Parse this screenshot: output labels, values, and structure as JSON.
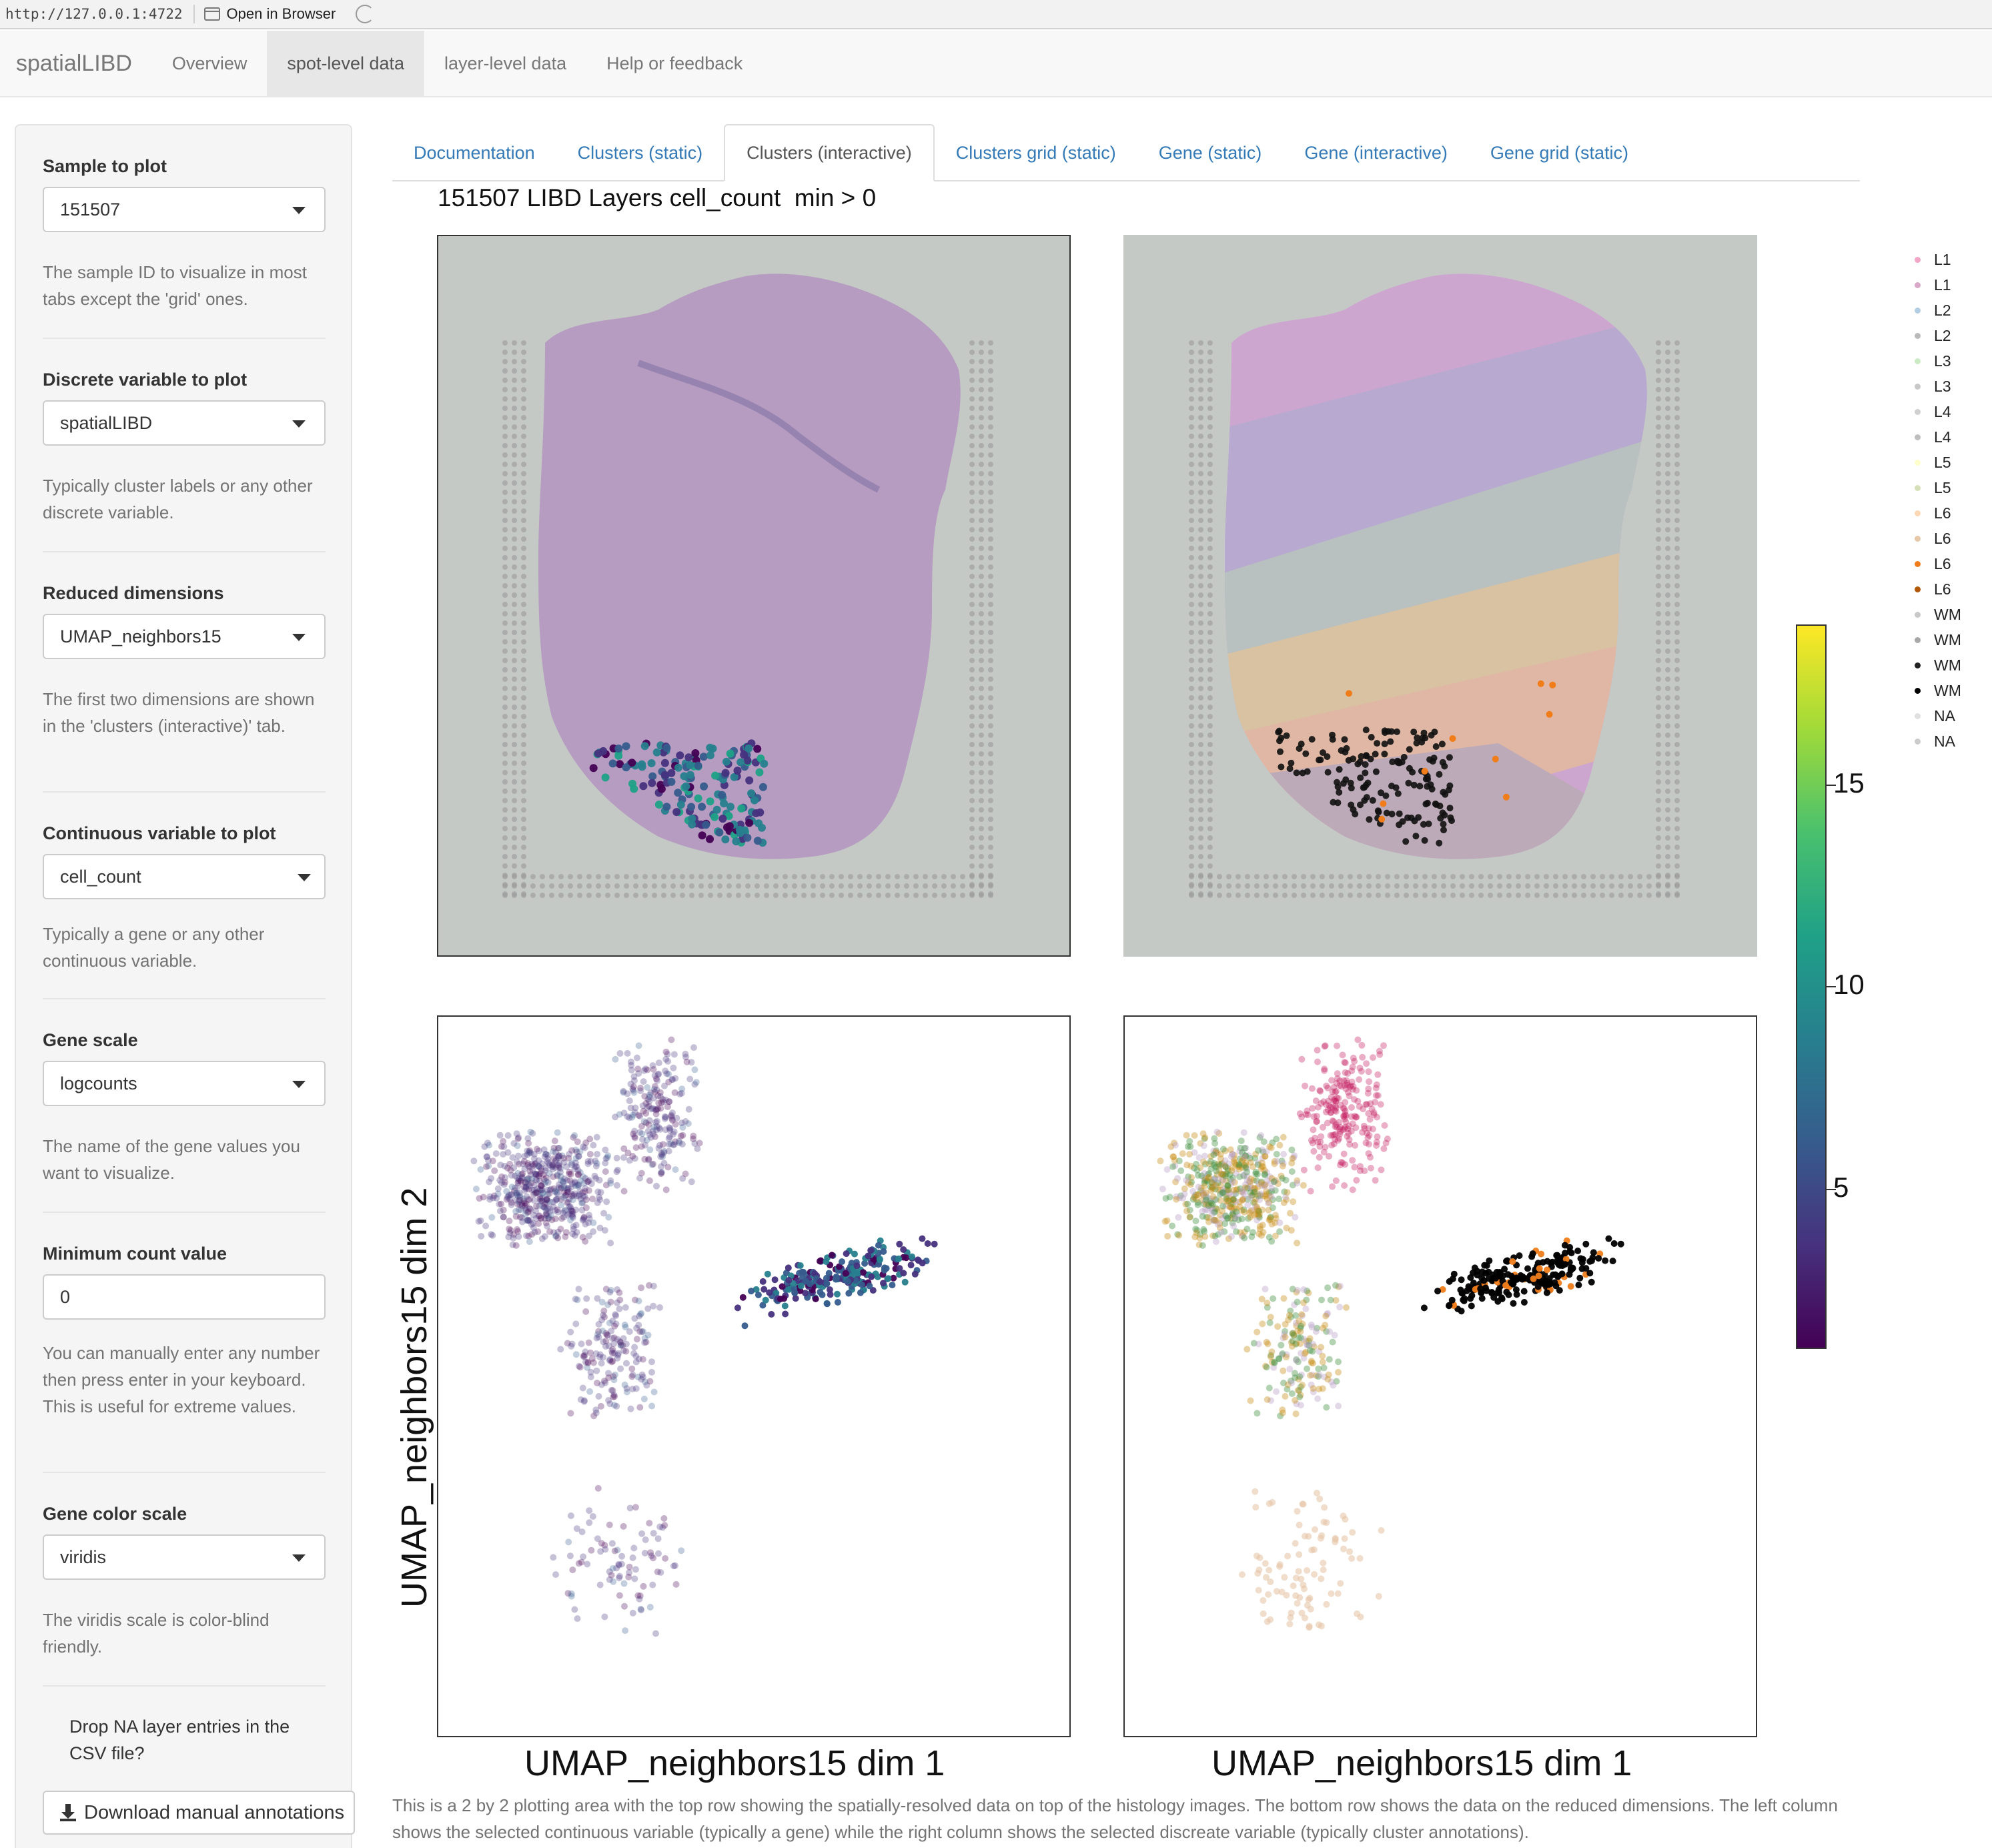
{
  "browser": {
    "url": "http://127.0.0.1:4722",
    "open_in_browser": "Open in Browser"
  },
  "navbar": {
    "brand": "spatialLIBD",
    "items": [
      "Overview",
      "spot-level data",
      "layer-level data",
      "Help or feedback"
    ],
    "active": "spot-level data"
  },
  "sidebar": {
    "sample": {
      "label": "Sample to plot",
      "value": "151507",
      "help": "The sample ID to visualize in most tabs except the 'grid' ones."
    },
    "discrete": {
      "label": "Discrete variable to plot",
      "value": "spatialLIBD",
      "help": "Typically cluster labels or any other discrete variable."
    },
    "reduced": {
      "label": "Reduced dimensions",
      "value": "UMAP_neighbors15",
      "help": "The first two dimensions are shown in the 'clusters (interactive)' tab."
    },
    "continuous": {
      "label": "Continuous variable to plot",
      "value": "cell_count",
      "help": "Typically a gene or any other continuous variable."
    },
    "gene_scale": {
      "label": "Gene scale",
      "value": "logcounts",
      "help": "The name of the gene values you want to visualize."
    },
    "min_count": {
      "label": "Minimum count value",
      "value": "0",
      "help": "You can manually enter any number then press enter in your keyboard. This is useful for extreme values."
    },
    "color_scale": {
      "label": "Gene color scale",
      "value": "viridis",
      "help": "The viridis scale is color-blind friendly."
    },
    "drop_na": {
      "label": "Drop NA layer entries in the CSV file?"
    },
    "download": {
      "label": "Download manual annotations"
    }
  },
  "tabs": [
    "Documentation",
    "Clusters (static)",
    "Clusters (interactive)",
    "Clusters grid (static)",
    "Gene (static)",
    "Gene (interactive)",
    "Gene grid (static)"
  ],
  "active_tab": "Clusters (interactive)",
  "plot_title": "151507 LIBD Layers cell_count  min > 0",
  "axes": {
    "x_label": "UMAP_neighbors15 dim 1",
    "y_label": "UMAP_neighbors15 dim 2"
  },
  "legend": {
    "entries": [
      {
        "label": "L1",
        "color": "#f4a6c6"
      },
      {
        "label": "L1",
        "color": "#d9a7c7"
      },
      {
        "label": "L2",
        "color": "#b3cde3"
      },
      {
        "label": "L2",
        "color": "#b9b9b9"
      },
      {
        "label": "L3",
        "color": "#ccebc5"
      },
      {
        "label": "L3",
        "color": "#c8c8c8"
      },
      {
        "label": "L4",
        "color": "#d0d0d0"
      },
      {
        "label": "L4",
        "color": "#bfbfbf"
      },
      {
        "label": "L5",
        "color": "#ffffcc"
      },
      {
        "label": "L5",
        "color": "#d6e0b8"
      },
      {
        "label": "L6",
        "color": "#fdd8b5"
      },
      {
        "label": "L6",
        "color": "#e6c7a8"
      },
      {
        "label": "L6",
        "color": "#f07d1a"
      },
      {
        "label": "L6",
        "color": "#b35806"
      },
      {
        "label": "WM",
        "color": "#c8c8c8"
      },
      {
        "label": "WM",
        "color": "#a8a8a8"
      },
      {
        "label": "WM",
        "color": "#222222"
      },
      {
        "label": "WM",
        "color": "#000000"
      },
      {
        "label": "NA",
        "color": "#e0e0e0"
      },
      {
        "label": "NA",
        "color": "#cccccc"
      }
    ]
  },
  "colorbar": {
    "colormap": "viridis",
    "ticks": [
      "5",
      "10",
      "15"
    ],
    "tick_values": [
      5,
      10,
      15
    ],
    "range": [
      1,
      19
    ]
  },
  "caption": "This is a 2 by 2 plotting area with the top row showing the spatially-resolved data on top of the histology images. The bottom row shows the data on the reduced dimensions. The left column shows the selected continuous variable (typically a gene) while the right column shows the selected discreate variable (typically cluster annotations)."
}
